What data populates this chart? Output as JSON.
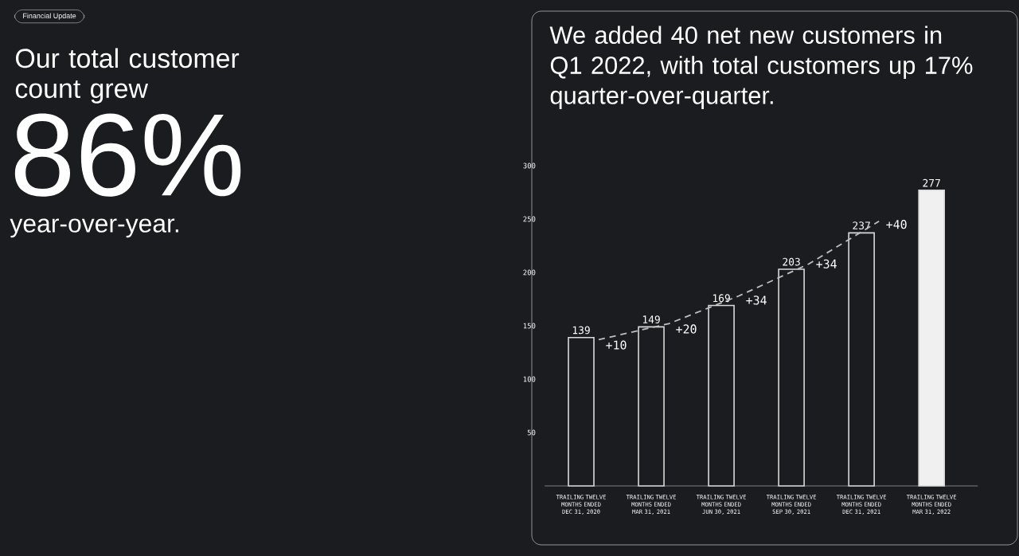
{
  "chart_data": [
    {
      "type": "other",
      "title": "Our total customer count grew",
      "subtitle": "Financial Update",
      "annotations": [
        "86%",
        "year-over-year."
      ]
    },
    {
      "type": "bar",
      "title": "We added 40 net new customers in Q1 2022, with total customers up 17% quarter-over-quarter.",
      "categories": [
        "TRAILING TWELVE MONTHS ENDED DEC 31, 2020",
        "TRAILING TWELVE MONTHS ENDED MAR 31, 2021",
        "TRAILING TWELVE MONTHS ENDED JUN 30, 2021",
        "TRAILING TWELVE MONTHS ENDED SEP 30, 2021",
        "TRAILING TWELVE MONTHS ENDED DEC 31, 2021",
        "TRAILING TWELVE MONTHS ENDED MAR 31, 2022"
      ],
      "series": [
        {
          "type": "bar",
          "values": [
            139,
            149,
            169,
            203,
            237,
            277
          ],
          "colors": [
            "#1b1c20",
            "#1b1c20",
            "#1b1c20",
            "#1b1c20",
            "#1b1c20",
            "#f0f0f0"
          ],
          "value_labels": [
            "139",
            "149",
            "169",
            "203",
            "237",
            "277"
          ]
        },
        {
          "type": "line",
          "values": [
            137,
            152,
            178,
            208,
            248,
            null
          ],
          "color": "#bfbfbf",
          "line_style": "dashed",
          "marker": "none"
        }
      ],
      "annotations": [
        "+10",
        "+20",
        "+34",
        "+34",
        "+40"
      ],
      "ylim": [
        0,
        300
      ],
      "yticks": [
        50,
        100,
        150,
        200,
        250,
        300
      ],
      "grid": false
    }
  ]
}
